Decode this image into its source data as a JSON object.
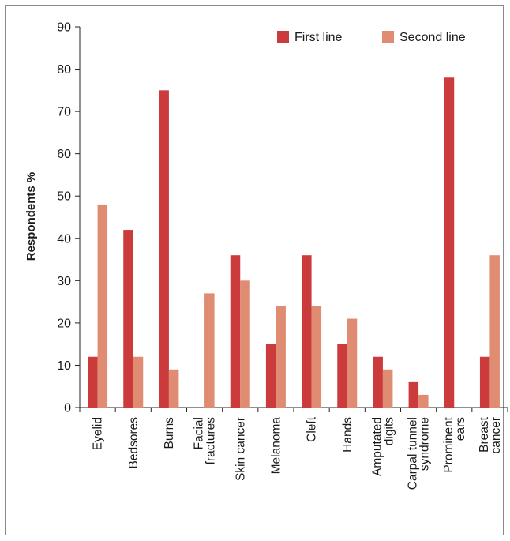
{
  "chart_data": {
    "type": "bar",
    "ylabel": "Respondents %",
    "ylim": [
      0,
      90
    ],
    "yticks": [
      0,
      10,
      20,
      30,
      40,
      50,
      60,
      70,
      80,
      90
    ],
    "grid": false,
    "legend": "top-right",
    "categories": [
      [
        "Eyelid"
      ],
      [
        "Bedsores"
      ],
      [
        "Burns"
      ],
      [
        "Facial",
        "fractures"
      ],
      [
        "Skin cancer"
      ],
      [
        "Melanoma"
      ],
      [
        "Cleft"
      ],
      [
        "Hands"
      ],
      [
        "Amputated",
        "digits"
      ],
      [
        "Carpal tunnel",
        "syndrome"
      ],
      [
        "Prominent",
        "ears"
      ],
      [
        "Breast",
        "cancer"
      ]
    ],
    "series": [
      {
        "name": "First line",
        "color": "#cc3b3b",
        "values": [
          12,
          42,
          75,
          0,
          36,
          15,
          36,
          15,
          12,
          6,
          78,
          12
        ]
      },
      {
        "name": "Second line",
        "color": "#e08c72",
        "values": [
          48,
          12,
          9,
          27,
          30,
          24,
          24,
          21,
          9,
          3,
          0,
          36
        ]
      }
    ]
  }
}
